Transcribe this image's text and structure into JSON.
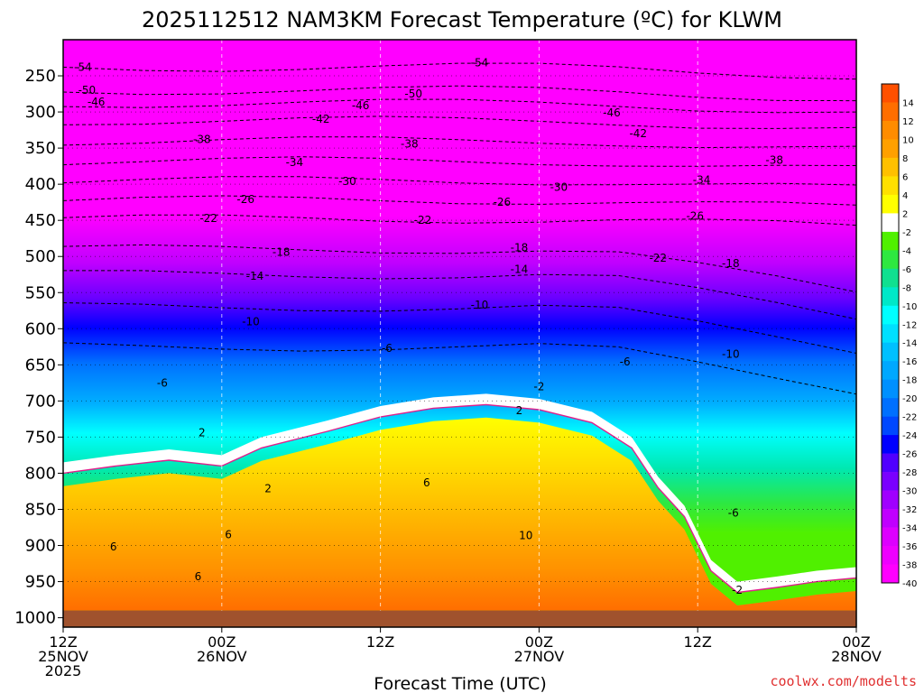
{
  "chart_data": {
    "type": "heatmap",
    "title": "2025112512 NAM3KM Forecast Temperature (ºC) for KLWM",
    "xlabel": "Forecast Time (UTC)",
    "ylabel": "",
    "x_ticks": [
      {
        "hour": 0,
        "lines": [
          "12Z",
          "25NOV",
          "2025"
        ]
      },
      {
        "hour": 12,
        "lines": [
          "00Z",
          "26NOV"
        ]
      },
      {
        "hour": 24,
        "lines": [
          "12Z"
        ]
      },
      {
        "hour": 36,
        "lines": [
          "00Z",
          "27NOV"
        ]
      },
      {
        "hour": 48,
        "lines": [
          "12Z"
        ]
      },
      {
        "hour": 60,
        "lines": [
          "00Z",
          "28NOV"
        ]
      }
    ],
    "x_range_hours": [
      0,
      60
    ],
    "y_ticks": [
      250,
      300,
      350,
      400,
      450,
      500,
      550,
      600,
      650,
      700,
      750,
      800,
      850,
      900,
      950,
      1000
    ],
    "y_range_hPa": [
      200,
      1013
    ],
    "colorbar": {
      "unit": "ºC",
      "labels": [
        14,
        12,
        10,
        8,
        6,
        4,
        2,
        -2,
        -4,
        -6,
        -8,
        -10,
        -12,
        -14,
        -16,
        -18,
        -20,
        -22,
        -24,
        -26,
        -28,
        -30,
        -32,
        -34,
        -36,
        -38,
        -40
      ],
      "colors": [
        "#ff5000",
        "#ff6e00",
        "#ff8c00",
        "#ffa000",
        "#ffc000",
        "#ffe000",
        "#ffff00",
        "#ffffff",
        "#50f000",
        "#2ee840",
        "#10e090",
        "#00e8c8",
        "#00ffff",
        "#00e0ff",
        "#00c0ff",
        "#00a8ff",
        "#0090ff",
        "#0070ff",
        "#0048ff",
        "#0000ff",
        "#5000ff",
        "#7a00ff",
        "#a000ff",
        "#c000ff",
        "#dd00ff",
        "#ee00ff",
        "#ff00ff"
      ]
    },
    "contour_labels": [
      {
        "v": "-54",
        "h": 1.5,
        "p": 238
      },
      {
        "v": "-50",
        "h": 1.8,
        "p": 270
      },
      {
        "v": "-46",
        "h": 2.5,
        "p": 286
      },
      {
        "v": "-54",
        "h": 31.5,
        "p": 232
      },
      {
        "v": "-50",
        "h": 26.5,
        "p": 275
      },
      {
        "v": "-46",
        "h": 22.5,
        "p": 291
      },
      {
        "v": "-42",
        "h": 19.5,
        "p": 310
      },
      {
        "v": "-38",
        "h": 10.5,
        "p": 338
      },
      {
        "v": "-38",
        "h": 26.2,
        "p": 344
      },
      {
        "v": "-46",
        "h": 41.5,
        "p": 301
      },
      {
        "v": "-42",
        "h": 43.5,
        "p": 330
      },
      {
        "v": "-38",
        "h": 53.8,
        "p": 367
      },
      {
        "v": "-34",
        "h": 17.5,
        "p": 370
      },
      {
        "v": "-30",
        "h": 21.5,
        "p": 396
      },
      {
        "v": "-26",
        "h": 13.8,
        "p": 421
      },
      {
        "v": "-22",
        "h": 11,
        "p": 447
      },
      {
        "v": "-22",
        "h": 27.2,
        "p": 450
      },
      {
        "v": "-26",
        "h": 33.2,
        "p": 425
      },
      {
        "v": "-30",
        "h": 37.5,
        "p": 404
      },
      {
        "v": "-34",
        "h": 48.3,
        "p": 394
      },
      {
        "v": "-26",
        "h": 47.8,
        "p": 444
      },
      {
        "v": "-18",
        "h": 16.5,
        "p": 494
      },
      {
        "v": "-18",
        "h": 34.5,
        "p": 488
      },
      {
        "v": "-22",
        "h": 45,
        "p": 502
      },
      {
        "v": "-18",
        "h": 50.5,
        "p": 510
      },
      {
        "v": "-14",
        "h": 14.5,
        "p": 527
      },
      {
        "v": "-14",
        "h": 34.5,
        "p": 518
      },
      {
        "v": "-10",
        "h": 31.5,
        "p": 567
      },
      {
        "v": "-10",
        "h": 14.2,
        "p": 590
      },
      {
        "v": "-10",
        "h": 50.5,
        "p": 635
      },
      {
        "v": "-6",
        "h": 24.5,
        "p": 627
      },
      {
        "v": "-6",
        "h": 7.5,
        "p": 675
      },
      {
        "v": "-6",
        "h": 42.5,
        "p": 646
      },
      {
        "v": "-6",
        "h": 50.7,
        "p": 855
      },
      {
        "v": "-2",
        "h": 36,
        "p": 680
      },
      {
        "v": "-2",
        "h": 51,
        "p": 962
      },
      {
        "v": "2",
        "h": 10.5,
        "p": 744
      },
      {
        "v": "2",
        "h": 34.5,
        "p": 713
      },
      {
        "v": "2",
        "h": 15.5,
        "p": 821
      },
      {
        "v": "6",
        "h": 27.5,
        "p": 813
      },
      {
        "v": "6",
        "h": 12.5,
        "p": 885
      },
      {
        "v": "6",
        "h": 3.8,
        "p": 902
      },
      {
        "v": "6",
        "h": 10.2,
        "p": 943
      },
      {
        "v": "10",
        "h": 35,
        "p": 886
      }
    ],
    "series": [
      {
        "name": "2C isotherm (magenta)",
        "points": [
          [
            0,
            800
          ],
          [
            4,
            790
          ],
          [
            8,
            782
          ],
          [
            12,
            790
          ],
          [
            15,
            765
          ],
          [
            20,
            742
          ],
          [
            24,
            722
          ],
          [
            28,
            710
          ],
          [
            32,
            705
          ],
          [
            36,
            712
          ],
          [
            40,
            730
          ],
          [
            43,
            765
          ],
          [
            45,
            820
          ],
          [
            47,
            860
          ],
          [
            49,
            935
          ],
          [
            51,
            965
          ],
          [
            54,
            958
          ],
          [
            57,
            950
          ],
          [
            60,
            945
          ]
        ]
      },
      {
        "name": "Surface (hPa)",
        "points": [
          [
            0,
            990
          ],
          [
            60,
            990
          ]
        ]
      }
    ],
    "credit": "coolwx.com/modelts"
  }
}
